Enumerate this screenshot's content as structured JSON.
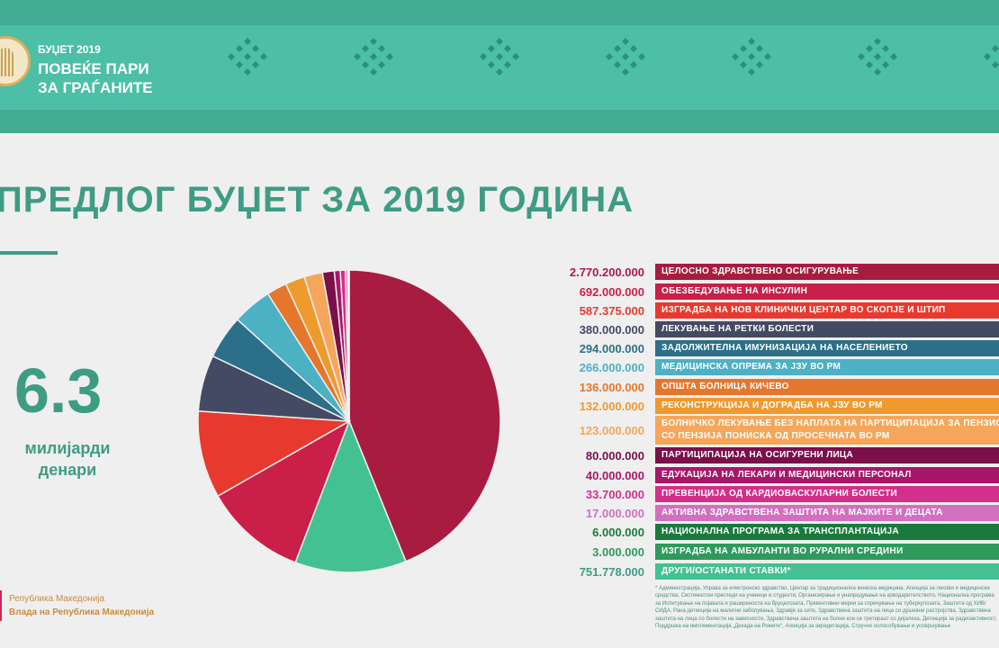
{
  "header": {
    "year": "БУЏЕТ 2019",
    "slogan_line1": "ПОВЕЌЕ ПАРИ",
    "slogan_line2": "ЗА ГРАЃАНИТЕ"
  },
  "title": "ПРЕДЛОГ БУЏЕТ ЗА 2019 ГОДИНА",
  "total": {
    "number": "6.3",
    "unit_line1": "милијарди",
    "unit_line2": "денари"
  },
  "government": {
    "line1": "Република Македонија",
    "line2": "Влада на Република Македонија"
  },
  "colors": {
    "header_teal": "#4cbfa6",
    "title_teal": "#3f9c84"
  },
  "chart_data": {
    "type": "pie",
    "title": "ПРЕДЛОГ БУЏЕТ ЗА 2019 ГОДИНА",
    "slices": [
      {
        "value": 2770200000,
        "value_label": "2.770.200.000",
        "label": "ЦЕЛОСНО ЗДРАВСТВЕНО ОСИГУРУВАЊЕ",
        "color": "#a81c40",
        "text_color": "#a81c40"
      },
      {
        "value": 751778000,
        "value_label": "751.778.000",
        "label": "ДРУГИ/ОСТАНАТИ СТАВКИ*",
        "color": "#44c193",
        "text_color": "#3f9c84",
        "legend_position": 15,
        "pie_position": 1
      },
      {
        "value": 692000000,
        "value_label": "692.000.000",
        "label": "ОБЕЗБЕДУВАЊЕ НА ИНСУЛИН",
        "color": "#c91f48",
        "text_color": "#c91f48"
      },
      {
        "value": 587375000,
        "value_label": "587.375.000",
        "label": "ИЗГРАДБА НА НОВ КЛИНИЧКИ ЦЕНТАР ВО СКОПЈЕ И ШТИП",
        "color": "#e8392e",
        "text_color": "#e8392e"
      },
      {
        "value": 380000000,
        "value_label": "380.000.000",
        "label": "ЛЕКУВАЊЕ НА РЕТКИ БОЛЕСТИ",
        "color": "#434a63",
        "text_color": "#434a63"
      },
      {
        "value": 294000000,
        "value_label": "294.000.000",
        "label": "ЗАДОЛЖИТЕЛНА ИМУНИЗАЦИЈА НА НАСЕЛЕНИЕТО",
        "color": "#2b7088",
        "text_color": "#2b7088"
      },
      {
        "value": 266000000,
        "value_label": "266.000.000",
        "label": "МЕДИЦИНСКА ОПРЕМА ЗА ЈЗУ ВО РМ",
        "color": "#4cb1c4",
        "text_color": "#4cb1c4"
      },
      {
        "value": 136000000,
        "value_label": "136.000.000",
        "label": "ОПШТА БОЛНИЦА КИЧЕВО",
        "color": "#e5772c",
        "text_color": "#e5772c"
      },
      {
        "value": 132000000,
        "value_label": "132.000.000",
        "label": "РЕКОНСТРУКЦИЈА И ДОГРАДБА НА ЈЗУ ВО РМ",
        "color": "#ef9a2e",
        "text_color": "#ef9a2e"
      },
      {
        "value": 123000000,
        "value_label": "123.000.000",
        "label": "БОЛНИЧКО ЛЕКУВАЊЕ БЕЗ НАПЛАТА НА ПАРТИЦИПАЦИЈА ЗА ПЕНЗИОНЕРИ СО ПЕНЗИЈА ПОНИСКА ОД ПРОСЕЧНАТА ВО РМ",
        "label_line1": "БОЛНИЧКО ЛЕКУВАЊЕ БЕЗ НАПЛАТА НА ПАРТИЦИПАЦИЈА ЗА ПЕНЗИОНЕРИ",
        "label_line2": "СО ПЕНЗИЈА ПОНИСКА ОД ПРОСЕЧНАТА ВО РМ",
        "color": "#f6a65a",
        "text_color": "#f6a65a"
      },
      {
        "value": 80000000,
        "value_label": "80.000.000",
        "label": "ПАРТИЦИПАЦИЈА НА ОСИГУРЕНИ ЛИЦА",
        "color": "#7a0f4a",
        "text_color": "#7a0f4a"
      },
      {
        "value": 40000000,
        "value_label": "40.000.000",
        "label": "ЕДУКАЦИЈА НА ЛЕКАРИ И МЕДИЦИНСКИ ПЕРСОНАЛ",
        "color": "#a8166a",
        "text_color": "#a8166a"
      },
      {
        "value": 33700000,
        "value_label": "33.700.000",
        "label": "ПРЕВЕНЦИЈА ОД КАРДИОВАСКУЛАРНИ БОЛЕСТИ",
        "color": "#d42f8a",
        "text_color": "#d42f8a"
      },
      {
        "value": 17000000,
        "value_label": "17.000.000",
        "label": "АКТИВНА ЗДРАВСТВЕНА ЗАШТИТА НА МАЈКИТЕ И ДЕЦАТА",
        "color": "#d26fbf",
        "text_color": "#d26fbf"
      },
      {
        "value": 6000000,
        "value_label": "6.000.000",
        "label": "НАЦИОНАЛНА ПРОГРАМА ЗА ТРАНСПЛАНТАЦИЈА",
        "color": "#1a7a3e",
        "text_color": "#1a7a3e"
      },
      {
        "value": 3000000,
        "value_label": "3.000.000",
        "label": "ИЗГРАДБА НА АМБУЛАНТИ ВО РУРАЛНИ СРЕДИНИ",
        "color": "#2e9a5c",
        "text_color": "#2e9a5c"
      }
    ]
  },
  "footnote": "* Администрација, Управа за електронско здравство, Центар за традиционална кинеска медицина, Агенција за лекови и медицински средства, Систематски прегледи на ученици и студенти, Организирање и унапредување на крводарителството, Национална програма за Испитување на појавата и раширеноста на бруцелозата, Превентивни мерки за спречување на туберкулозата, Заштита од ХИВ/ СИДА, Рана детекција на малигни заболувања, Здравје за сите, Здравствена заштита на лица со душевни растројства, Здравствена заштита на лица со болести на зависности, Здравствена заштита на болни кои се третираат со дијализа, Детекција за радиоактивност, Поддршка на имплементација „Декада на Ромите“, Агенција за акредитација, Стручно оспособување и усовршување"
}
